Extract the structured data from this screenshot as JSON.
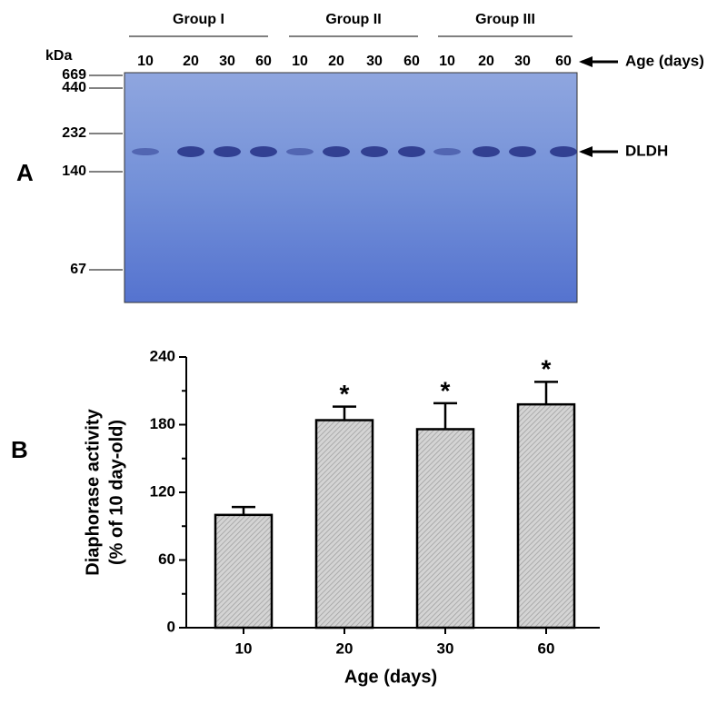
{
  "panels": [
    "A",
    "B"
  ],
  "gel": {
    "groups": [
      "Group I",
      "Group II",
      "Group III"
    ],
    "unit_label": "kDa",
    "markers": [
      "669",
      "440",
      "232",
      "140",
      "67"
    ],
    "lanes": [
      "10",
      "20",
      "30",
      "60",
      "10",
      "20",
      "30",
      "60",
      "10",
      "20",
      "30",
      "60"
    ],
    "lane_axis_label": "Age (days)",
    "band_label": "DLDH"
  },
  "chart_data": {
    "type": "bar",
    "categories": [
      "10",
      "20",
      "30",
      "60"
    ],
    "values": [
      100,
      184,
      176,
      198
    ],
    "errors": [
      7,
      12,
      23,
      20
    ],
    "annotations": [
      {
        "category": "20",
        "text": "*"
      },
      {
        "category": "30",
        "text": "*"
      },
      {
        "category": "60",
        "text": "*"
      }
    ],
    "color": "#c8c8c8",
    "xlabel": "Age (days)",
    "ylabel": [
      "Diaphorase activity",
      "(% of 10 day-old)"
    ],
    "ylim": [
      0,
      240
    ],
    "yticks": [
      0,
      60,
      120,
      180,
      240
    ],
    "yminorticks": [
      30,
      90,
      150,
      210
    ]
  }
}
